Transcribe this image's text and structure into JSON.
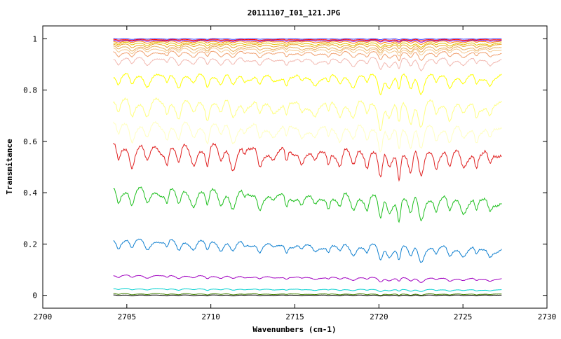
{
  "chart_data": {
    "type": "line",
    "title": "20111107_I01_121.JPG",
    "xlabel": "Wavenumbers (cm-1)",
    "ylabel": "Transmitance",
    "xlim": [
      2700,
      2730
    ],
    "ylim": [
      -0.05,
      1.05
    ],
    "x_ticks": [
      2700,
      2705,
      2710,
      2715,
      2720,
      2725,
      2730
    ],
    "x_tick_labels": [
      "2700",
      "2705",
      "2710",
      "2715",
      "2720",
      "2725",
      "2730"
    ],
    "y_ticks": [
      0,
      0.2,
      0.4,
      0.6,
      0.8,
      1
    ],
    "y_tick_labels": [
      "0",
      "0.2",
      "0.4",
      "0.6",
      "0.8",
      "1"
    ],
    "x_range": [
      2704.2,
      2727.3
    ],
    "absorption_lines": [
      2704.5,
      2705.3,
      2706.2,
      2707.4,
      2708.1,
      2709.0,
      2709.8,
      2710.6,
      2711.3,
      2712.0,
      2712.9,
      2713.7,
      2714.5,
      2715.4,
      2716.2,
      2717.0,
      2717.7,
      2718.5,
      2719.3,
      2720.1,
      2720.6,
      2721.2,
      2721.9,
      2722.5,
      2723.4,
      2724.2,
      2725.0,
      2725.8,
      2726.6
    ],
    "grid": false,
    "legend": "none",
    "series": [
      {
        "color": "#4040ff",
        "start": 1.0,
        "end": 1.0,
        "depth": 0.002
      },
      {
        "color": "#ff0000",
        "start": 0.997,
        "end": 0.997,
        "depth": 0.003
      },
      {
        "color": "#8000c0",
        "start": 0.994,
        "end": 0.994,
        "depth": 0.004
      },
      {
        "color": "#ff8000",
        "start": 0.99,
        "end": 0.99,
        "depth": 0.006
      },
      {
        "color": "#e0c000",
        "start": 0.984,
        "end": 0.982,
        "depth": 0.008
      },
      {
        "color": "#f0a030",
        "start": 0.977,
        "end": 0.976,
        "depth": 0.01
      },
      {
        "color": "#e8b060",
        "start": 0.968,
        "end": 0.966,
        "depth": 0.012
      },
      {
        "color": "#f4c890",
        "start": 0.96,
        "end": 0.958,
        "depth": 0.014
      },
      {
        "color": "#f0a070",
        "start": 0.948,
        "end": 0.945,
        "depth": 0.017
      },
      {
        "color": "#f2b8b0",
        "start": 0.923,
        "end": 0.918,
        "depth": 0.022
      },
      {
        "color": "#ffff00",
        "start": 0.855,
        "end": 0.852,
        "depth": 0.035
      },
      {
        "color": "#ffff80",
        "start": 0.752,
        "end": 0.742,
        "depth": 0.05
      },
      {
        "color": "#ffffc0",
        "start": 0.662,
        "end": 0.648,
        "depth": 0.05
      },
      {
        "color": "#e02020",
        "start": 0.576,
        "end": 0.553,
        "depth": 0.06
      },
      {
        "color": "#20c020",
        "start": 0.41,
        "end": 0.368,
        "depth": 0.05
      },
      {
        "color": "#1080d0",
        "start": 0.215,
        "end": 0.178,
        "depth": 0.03
      },
      {
        "color": "#a000c0",
        "start": 0.078,
        "end": 0.063,
        "depth": 0.008
      },
      {
        "color": "#00d0d0",
        "start": 0.026,
        "end": 0.021,
        "depth": 0.004
      },
      {
        "color": "#408000",
        "start": 0.006,
        "end": 0.005,
        "depth": 0.003
      },
      {
        "color": "#000000",
        "start": 0.001,
        "end": 0.001,
        "depth": 0.002
      }
    ]
  }
}
